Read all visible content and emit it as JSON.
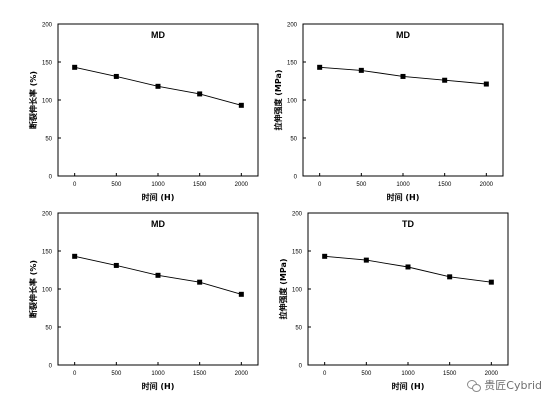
{
  "chart_data": [
    {
      "type": "line",
      "title": "MD",
      "xlabel": "时间 (H)",
      "ylabel": "断裂伸长率 (%)",
      "x": [
        0,
        500,
        1000,
        1500,
        2000
      ],
      "series": [
        {
          "values": [
            143,
            131,
            118,
            108,
            93
          ]
        }
      ],
      "xlim": [
        -200,
        2200
      ],
      "ylim": [
        0,
        200
      ],
      "xticks": [
        "0",
        "500",
        "1000",
        "1500",
        "2000"
      ],
      "yticks": [
        "0",
        "50",
        "100",
        "150",
        "200"
      ],
      "marker": "square",
      "grid": false
    },
    {
      "type": "line",
      "title": "MD",
      "xlabel": "时间 (H)",
      "ylabel": "拉伸强度 (MPa)",
      "x": [
        0,
        500,
        1000,
        1500,
        2000
      ],
      "series": [
        {
          "values": [
            143,
            139,
            131,
            126,
            121
          ]
        }
      ],
      "xlim": [
        -200,
        2200
      ],
      "ylim": [
        0,
        200
      ],
      "xticks": [
        "0",
        "500",
        "1000",
        "1500",
        "2000"
      ],
      "yticks": [
        "0",
        "50",
        "100",
        "150",
        "200"
      ],
      "marker": "square",
      "grid": false
    },
    {
      "type": "line",
      "title": "MD",
      "xlabel": "时间 (H)",
      "ylabel": "断裂伸长率 (%)",
      "x": [
        0,
        500,
        1000,
        1500,
        2000
      ],
      "series": [
        {
          "values": [
            143,
            131,
            118,
            109,
            93
          ]
        }
      ],
      "xlim": [
        -200,
        2200
      ],
      "ylim": [
        0,
        200
      ],
      "xticks": [
        "0",
        "500",
        "1000",
        "1500",
        "2000"
      ],
      "yticks": [
        "0",
        "50",
        "100",
        "150",
        "200"
      ],
      "marker": "square",
      "grid": false
    },
    {
      "type": "line",
      "title": "TD",
      "xlabel": "时间 (H)",
      "ylabel": "拉伸强度 (MPa)",
      "x": [
        0,
        500,
        1000,
        1500,
        2000
      ],
      "series": [
        {
          "values": [
            143,
            138,
            129,
            116,
            109
          ]
        }
      ],
      "xlim": [
        -200,
        2200
      ],
      "ylim": [
        0,
        200
      ],
      "xticks": [
        "0",
        "500",
        "1000",
        "1500",
        "2000"
      ],
      "yticks": [
        "0",
        "50",
        "100",
        "150",
        "200"
      ],
      "marker": "square",
      "grid": false
    }
  ],
  "watermark": {
    "text": "贵匠Cybrid",
    "icon": "wechat-icon"
  },
  "colors": {
    "line": "#000000",
    "marker": "#000000",
    "axis": "#000000"
  }
}
